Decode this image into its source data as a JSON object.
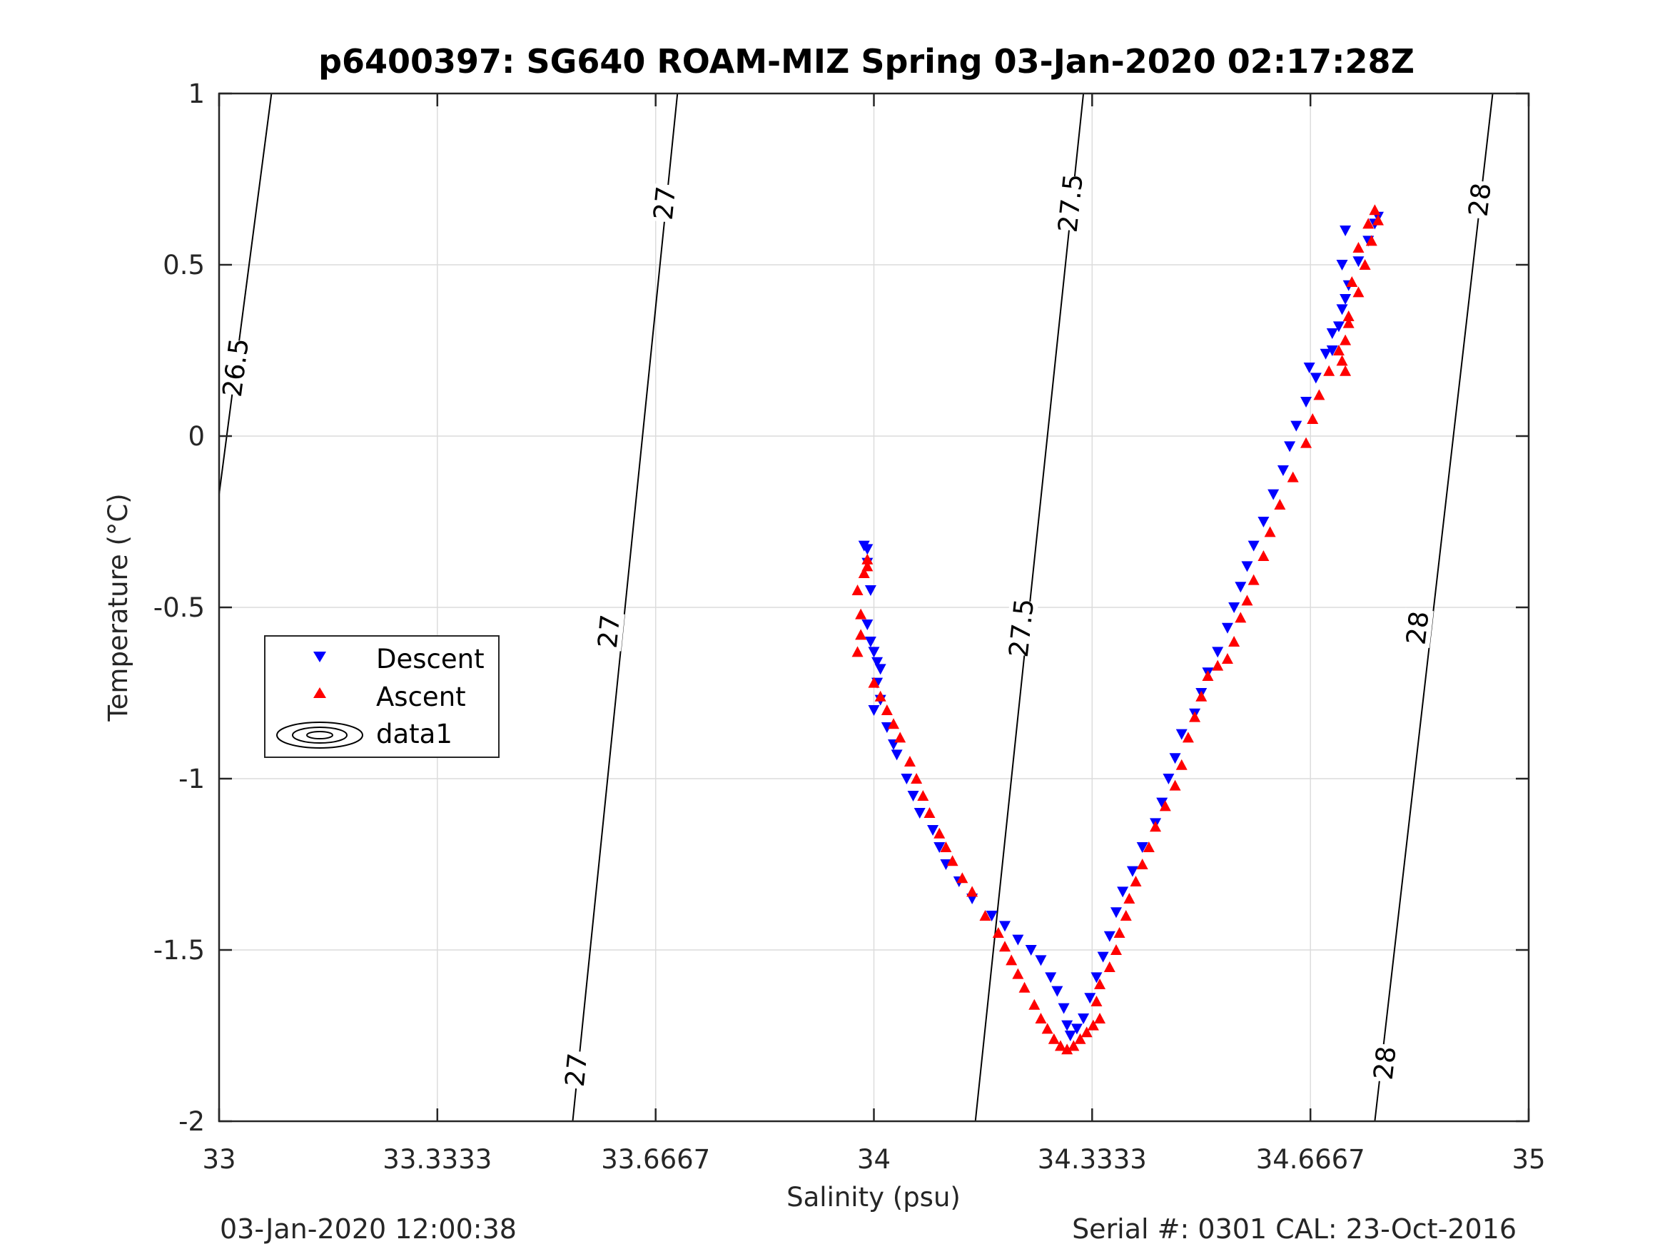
{
  "footer": {
    "left": "03-Jan-2020 12:00:38",
    "right": "Serial #: 0301  CAL: 23-Oct-2016"
  },
  "chart_data": {
    "type": "scatter",
    "title": "p6400397: SG640 ROAM-MIZ Spring 03-Jan-2020 02:17:28Z",
    "xlabel": "Salinity (psu)",
    "ylabel": "Temperature (°C)",
    "xlim": [
      33,
      35
    ],
    "ylim": [
      -2,
      1
    ],
    "xticks": [
      33,
      33.3333,
      33.6667,
      34,
      34.3333,
      34.6667,
      35
    ],
    "xtick_labels": [
      "33",
      "33.3333",
      "33.6667",
      "34",
      "34.3333",
      "34.6667",
      "35"
    ],
    "yticks": [
      -2,
      -1.5,
      -1,
      -0.5,
      0,
      0.5,
      1
    ],
    "ytick_labels": [
      "-2",
      "-1.5",
      "-1",
      "-0.5",
      "0",
      "0.5",
      "1"
    ],
    "grid": true,
    "legend": {
      "placement": "left",
      "entries": [
        "Descent",
        "Ascent",
        "data1"
      ]
    },
    "colors": {
      "descent": "#0000ff",
      "ascent": "#ff0000",
      "contour": "#000000"
    },
    "density_contours": [
      {
        "label": "26.5",
        "points": [
          [
            33.0,
            -0.17
          ],
          [
            33.08,
            1.0
          ]
        ],
        "label_positions": [
          [
            33.025,
            0.2
          ]
        ]
      },
      {
        "label": "27",
        "points": [
          [
            33.54,
            -2.0
          ],
          [
            33.7,
            1.0
          ]
        ],
        "label_positions": [
          [
            33.545,
            -1.85
          ],
          [
            33.595,
            -0.57
          ],
          [
            33.68,
            0.68
          ]
        ]
      },
      {
        "label": "27.5",
        "points": [
          [
            34.155,
            -2.0
          ],
          [
            34.32,
            1.0
          ]
        ],
        "label_positions": [
          [
            34.225,
            -0.56
          ],
          [
            34.3,
            0.68
          ]
        ]
      },
      {
        "label": "28",
        "points": [
          [
            34.765,
            -2.0
          ],
          [
            34.945,
            1.0
          ]
        ],
        "label_positions": [
          [
            34.78,
            -1.83
          ],
          [
            34.83,
            -0.56
          ],
          [
            34.925,
            0.69
          ]
        ]
      }
    ],
    "series": [
      {
        "name": "Descent",
        "marker": "triangle-down",
        "points": [
          [
            33.985,
            -0.32
          ],
          [
            33.99,
            -0.33
          ],
          [
            33.99,
            -0.37
          ],
          [
            33.995,
            -0.45
          ],
          [
            33.99,
            -0.55
          ],
          [
            33.995,
            -0.6
          ],
          [
            34.0,
            -0.63
          ],
          [
            34.005,
            -0.66
          ],
          [
            34.01,
            -0.68
          ],
          [
            34.005,
            -0.72
          ],
          [
            34.01,
            -0.77
          ],
          [
            34.0,
            -0.8
          ],
          [
            34.02,
            -0.85
          ],
          [
            34.03,
            -0.9
          ],
          [
            34.035,
            -0.93
          ],
          [
            34.05,
            -1.0
          ],
          [
            34.06,
            -1.05
          ],
          [
            34.07,
            -1.1
          ],
          [
            34.09,
            -1.15
          ],
          [
            34.1,
            -1.2
          ],
          [
            34.11,
            -1.25
          ],
          [
            34.13,
            -1.3
          ],
          [
            34.15,
            -1.35
          ],
          [
            34.18,
            -1.4
          ],
          [
            34.2,
            -1.43
          ],
          [
            34.22,
            -1.47
          ],
          [
            34.24,
            -1.5
          ],
          [
            34.255,
            -1.53
          ],
          [
            34.27,
            -1.58
          ],
          [
            34.28,
            -1.62
          ],
          [
            34.29,
            -1.67
          ],
          [
            34.295,
            -1.72
          ],
          [
            34.3,
            -1.75
          ],
          [
            34.31,
            -1.73
          ],
          [
            34.32,
            -1.7
          ],
          [
            34.33,
            -1.64
          ],
          [
            34.34,
            -1.58
          ],
          [
            34.35,
            -1.52
          ],
          [
            34.36,
            -1.46
          ],
          [
            34.37,
            -1.39
          ],
          [
            34.38,
            -1.33
          ],
          [
            34.395,
            -1.27
          ],
          [
            34.41,
            -1.2
          ],
          [
            34.43,
            -1.13
          ],
          [
            34.44,
            -1.07
          ],
          [
            34.45,
            -1.0
          ],
          [
            34.46,
            -0.94
          ],
          [
            34.47,
            -0.87
          ],
          [
            34.49,
            -0.81
          ],
          [
            34.5,
            -0.75
          ],
          [
            34.51,
            -0.69
          ],
          [
            34.525,
            -0.63
          ],
          [
            34.54,
            -0.56
          ],
          [
            34.55,
            -0.5
          ],
          [
            34.56,
            -0.44
          ],
          [
            34.57,
            -0.38
          ],
          [
            34.58,
            -0.32
          ],
          [
            34.595,
            -0.25
          ],
          [
            34.61,
            -0.17
          ],
          [
            34.625,
            -0.1
          ],
          [
            34.635,
            -0.03
          ],
          [
            34.645,
            0.03
          ],
          [
            34.66,
            0.1
          ],
          [
            34.675,
            0.17
          ],
          [
            34.69,
            0.24
          ],
          [
            34.7,
            0.3
          ],
          [
            34.715,
            0.37
          ],
          [
            34.725,
            0.44
          ],
          [
            34.74,
            0.51
          ],
          [
            34.755,
            0.57
          ],
          [
            34.765,
            0.62
          ],
          [
            34.77,
            0.64
          ],
          [
            34.72,
            0.6
          ],
          [
            34.715,
            0.5
          ],
          [
            34.72,
            0.4
          ],
          [
            34.71,
            0.32
          ],
          [
            34.7,
            0.25
          ],
          [
            34.665,
            0.2
          ]
        ]
      },
      {
        "name": "Ascent",
        "marker": "triangle-up",
        "points": [
          [
            33.975,
            -0.63
          ],
          [
            33.98,
            -0.58
          ],
          [
            33.98,
            -0.52
          ],
          [
            33.975,
            -0.45
          ],
          [
            33.985,
            -0.4
          ],
          [
            33.99,
            -0.36
          ],
          [
            33.99,
            -0.38
          ],
          [
            34.0,
            -0.72
          ],
          [
            34.01,
            -0.76
          ],
          [
            34.02,
            -0.8
          ],
          [
            34.03,
            -0.84
          ],
          [
            34.04,
            -0.88
          ],
          [
            34.055,
            -0.95
          ],
          [
            34.065,
            -1.0
          ],
          [
            34.075,
            -1.05
          ],
          [
            34.085,
            -1.1
          ],
          [
            34.1,
            -1.16
          ],
          [
            34.11,
            -1.2
          ],
          [
            34.12,
            -1.24
          ],
          [
            34.135,
            -1.29
          ],
          [
            34.15,
            -1.33
          ],
          [
            34.17,
            -1.4
          ],
          [
            34.19,
            -1.45
          ],
          [
            34.2,
            -1.49
          ],
          [
            34.21,
            -1.53
          ],
          [
            34.22,
            -1.57
          ],
          [
            34.23,
            -1.61
          ],
          [
            34.245,
            -1.66
          ],
          [
            34.255,
            -1.7
          ],
          [
            34.265,
            -1.73
          ],
          [
            34.275,
            -1.76
          ],
          [
            34.285,
            -1.78
          ],
          [
            34.295,
            -1.79
          ],
          [
            34.305,
            -1.78
          ],
          [
            34.315,
            -1.76
          ],
          [
            34.325,
            -1.74
          ],
          [
            34.335,
            -1.72
          ],
          [
            34.345,
            -1.7
          ],
          [
            34.34,
            -1.65
          ],
          [
            34.345,
            -1.6
          ],
          [
            34.36,
            -1.55
          ],
          [
            34.37,
            -1.5
          ],
          [
            34.375,
            -1.45
          ],
          [
            34.385,
            -1.4
          ],
          [
            34.39,
            -1.35
          ],
          [
            34.4,
            -1.3
          ],
          [
            34.41,
            -1.25
          ],
          [
            34.42,
            -1.2
          ],
          [
            34.43,
            -1.14
          ],
          [
            34.445,
            -1.08
          ],
          [
            34.46,
            -1.02
          ],
          [
            34.47,
            -0.96
          ],
          [
            34.48,
            -0.88
          ],
          [
            34.49,
            -0.82
          ],
          [
            34.5,
            -0.76
          ],
          [
            34.51,
            -0.7
          ],
          [
            34.525,
            -0.67
          ],
          [
            34.54,
            -0.65
          ],
          [
            34.55,
            -0.6
          ],
          [
            34.56,
            -0.53
          ],
          [
            34.57,
            -0.48
          ],
          [
            34.58,
            -0.42
          ],
          [
            34.595,
            -0.35
          ],
          [
            34.605,
            -0.28
          ],
          [
            34.62,
            -0.2
          ],
          [
            34.64,
            -0.12
          ],
          [
            34.66,
            -0.02
          ],
          [
            34.67,
            0.05
          ],
          [
            34.68,
            0.12
          ],
          [
            34.695,
            0.19
          ],
          [
            34.71,
            0.25
          ],
          [
            34.725,
            0.33
          ],
          [
            34.74,
            0.42
          ],
          [
            34.75,
            0.5
          ],
          [
            34.76,
            0.57
          ],
          [
            34.77,
            0.63
          ],
          [
            34.765,
            0.66
          ],
          [
            34.755,
            0.62
          ],
          [
            34.74,
            0.55
          ],
          [
            34.73,
            0.45
          ],
          [
            34.725,
            0.35
          ],
          [
            34.72,
            0.28
          ],
          [
            34.715,
            0.22
          ],
          [
            34.72,
            0.19
          ]
        ]
      }
    ]
  }
}
